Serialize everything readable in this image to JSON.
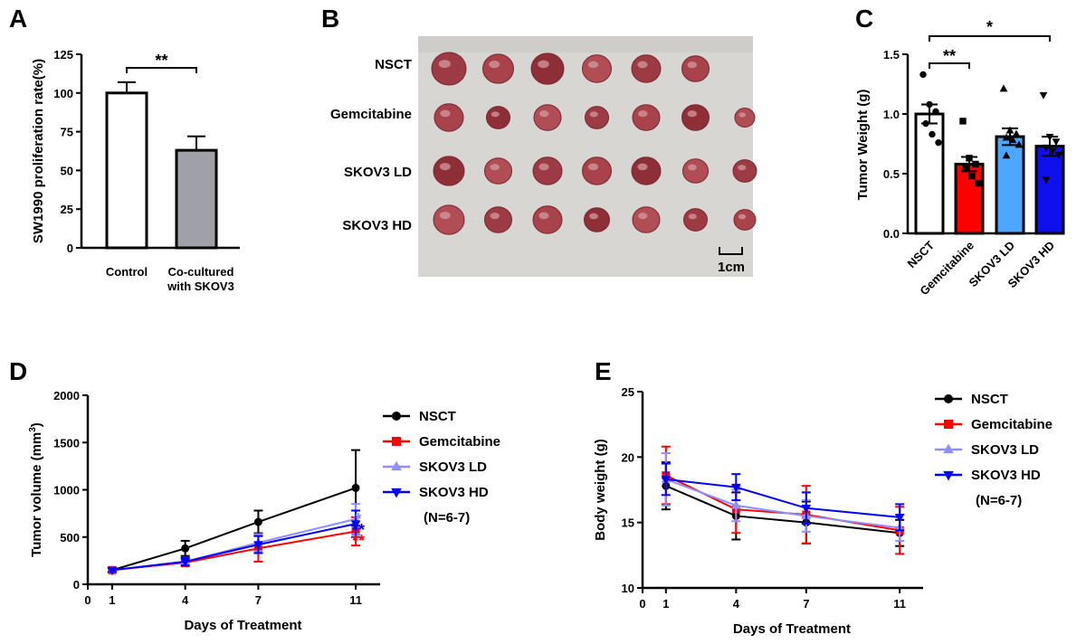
{
  "panels": {
    "A": {
      "letter": "A",
      "chart_data": {
        "type": "bar",
        "categories": [
          "Control",
          "Co-cultured\nwith SKOV3"
        ],
        "values": [
          100,
          63
        ],
        "errors": [
          7,
          9
        ],
        "bar_colors": [
          "#ffffff",
          "#a0a0a8"
        ],
        "ylabel": "SW1990 proliferation rate(%)",
        "ylim": [
          0,
          125
        ],
        "yticks": [
          0,
          25,
          50,
          75,
          100,
          125
        ],
        "significance": [
          {
            "from": 0,
            "to": 1,
            "label": "**"
          }
        ]
      }
    },
    "B": {
      "letter": "B",
      "rows": [
        "NSCT",
        "Gemcitabine",
        "SKOV3 LD",
        "SKOV3 HD"
      ],
      "tumors_per_row": [
        6,
        7,
        7,
        7
      ],
      "scale_label": "1cm"
    },
    "C": {
      "letter": "C",
      "chart_data": {
        "type": "bar",
        "categories": [
          "NSCT",
          "Gemcitabine",
          "SKOV3 LD",
          "SKOV3 HD"
        ],
        "values": [
          1.0,
          0.58,
          0.81,
          0.73
        ],
        "errors": [
          0.08,
          0.06,
          0.07,
          0.08
        ],
        "bar_colors": [
          "#ffffff",
          "#ff0000",
          "#4da6ff",
          "#1010ee"
        ],
        "marker_shapes": [
          "circle",
          "square",
          "triangle-up",
          "triangle-down"
        ],
        "points": [
          [
            1.33,
            1.08,
            1.02,
            0.92,
            0.83,
            0.76
          ],
          [
            0.94,
            0.63,
            0.58,
            0.55,
            0.48,
            0.42
          ],
          [
            1.21,
            0.86,
            0.83,
            0.8,
            0.78,
            0.74,
            0.65
          ],
          [
            1.16,
            0.81,
            0.77,
            0.72,
            0.69,
            0.66,
            0.45
          ]
        ],
        "ylabel": "Tumor Weight (g)",
        "ylim": [
          0,
          1.5
        ],
        "yticks": [
          "0.0",
          "0.5",
          "1.0",
          "1.5"
        ],
        "significance": [
          {
            "from": 0,
            "to": 1,
            "label": "**"
          },
          {
            "from": 0,
            "to": 3,
            "label": "*"
          }
        ]
      }
    },
    "D": {
      "letter": "D",
      "chart_data": {
        "type": "line",
        "x": [
          1,
          4,
          7,
          11
        ],
        "xlabel": "Days of Treatment",
        "ylabel_main": "Tumor volume (mm",
        "ylabel_sup": "3",
        "ylabel_end": ")",
        "xlim": [
          0,
          12
        ],
        "xticks": [
          0,
          1,
          4,
          7,
          11
        ],
        "ylim": [
          0,
          2000
        ],
        "yticks": [
          0,
          500,
          1000,
          1500,
          2000
        ],
        "series": [
          {
            "name": "NSCT",
            "color": "#000000",
            "marker": "circle",
            "values": [
              150,
              380,
              660,
              1020
            ],
            "errors": [
              20,
              80,
              120,
              400
            ]
          },
          {
            "name": "Gemcitabine",
            "color": "#ff0000",
            "marker": "square",
            "values": [
              150,
              230,
              380,
              560
            ],
            "errors": [
              20,
              40,
              140,
              150
            ]
          },
          {
            "name": "SKOV3 LD",
            "color": "#8f8fff",
            "marker": "triangle-up",
            "values": [
              150,
              240,
              440,
              690
            ],
            "errors": [
              20,
              40,
              90,
              160
            ]
          },
          {
            "name": "SKOV3 HD",
            "color": "#0000ff",
            "marker": "triangle-down",
            "values": [
              150,
              240,
              420,
              640
            ],
            "errors": [
              20,
              40,
              90,
              140
            ]
          }
        ],
        "annotations": [
          {
            "label": "*",
            "color": "#8f8fff"
          },
          {
            "label": "**",
            "color": "#0000ff"
          },
          {
            "label": "**",
            "color": "#ff0000"
          }
        ],
        "legend_note": "(N=6-7)",
        "legend_position": "right"
      }
    },
    "E": {
      "letter": "E",
      "chart_data": {
        "type": "line",
        "x": [
          1,
          4,
          7,
          11
        ],
        "xlabel": "Days of Treatment",
        "ylabel": "Body weight (g)",
        "xlim": [
          0,
          12
        ],
        "xticks": [
          0,
          1,
          4,
          7,
          11
        ],
        "ylim": [
          10,
          25
        ],
        "yticks": [
          10,
          15,
          20,
          25
        ],
        "series": [
          {
            "name": "NSCT",
            "color": "#000000",
            "marker": "circle",
            "values": [
              17.8,
              15.5,
              15.0,
              14.2
            ],
            "errors": [
              1.8,
              1.8,
              1.6,
              1.0
            ]
          },
          {
            "name": "Gemcitabine",
            "color": "#ff0000",
            "marker": "square",
            "values": [
              18.6,
              16.0,
              15.6,
              14.4
            ],
            "errors": [
              2.2,
              1.8,
              2.2,
              1.8
            ]
          },
          {
            "name": "SKOV3 LD",
            "color": "#8f8fff",
            "marker": "triangle-up",
            "values": [
              18.3,
              16.3,
              15.5,
              14.6
            ],
            "errors": [
              2.0,
              1.2,
              1.2,
              1.0
            ]
          },
          {
            "name": "SKOV3 HD",
            "color": "#0000ff",
            "marker": "triangle-down",
            "values": [
              18.3,
              17.7,
              16.1,
              15.4
            ],
            "errors": [
              1.2,
              1.0,
              1.2,
              1.0
            ]
          }
        ],
        "legend_note": "(N=6-7)",
        "legend_position": "right"
      }
    }
  }
}
